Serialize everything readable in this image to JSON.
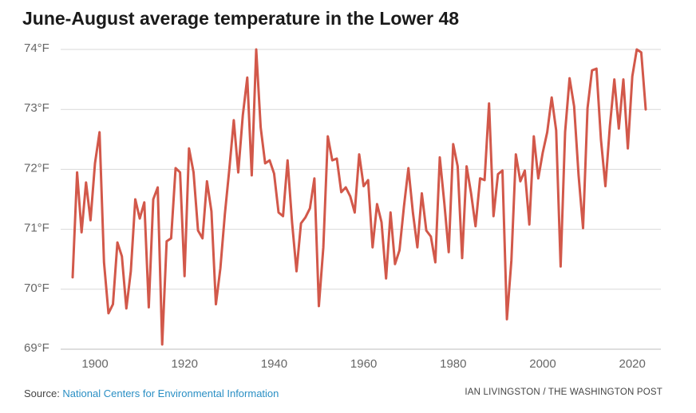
{
  "title": "June-August average temperature in the Lower 48",
  "source": {
    "prefix": "Source: ",
    "link_text": "National Centers for Environmental Information"
  },
  "credit": "IAN LIVINGSTON / THE WASHINGTON POST",
  "colors": {
    "line": "#d2584a",
    "grid": "#d9d9d9",
    "tick_text": "#666666",
    "link": "#2a8fc4"
  },
  "chart_data": {
    "type": "line",
    "title": "June-August average temperature in the Lower 48",
    "xlabel": "",
    "ylabel": "",
    "xlim": [
      1895,
      2023
    ],
    "ylim": [
      69,
      74
    ],
    "grid": true,
    "x_ticks": [
      1900,
      1920,
      1940,
      1960,
      1980,
      2000,
      2020
    ],
    "y_ticks": [
      {
        "value": 69,
        "label": "69°F"
      },
      {
        "value": 70,
        "label": "70°F"
      },
      {
        "value": 71,
        "label": "71°F"
      },
      {
        "value": 72,
        "label": "72°F"
      },
      {
        "value": 73,
        "label": "73°F"
      },
      {
        "value": 74,
        "label": "74°F"
      }
    ],
    "series": [
      {
        "x": [
          1895,
          1896,
          1897,
          1898,
          1899,
          1900,
          1901,
          1902,
          1903,
          1904,
          1905,
          1906,
          1907,
          1908,
          1909,
          1910,
          1911,
          1912,
          1913,
          1914,
          1915,
          1916,
          1917,
          1918,
          1919,
          1920,
          1921,
          1922,
          1923,
          1924,
          1925,
          1926,
          1927,
          1928,
          1929,
          1930,
          1931,
          1932,
          1933,
          1934,
          1935,
          1936,
          1937,
          1938,
          1939,
          1940,
          1941,
          1942,
          1943,
          1944,
          1945,
          1946,
          1947,
          1948,
          1949,
          1950,
          1951,
          1952,
          1953,
          1954,
          1955,
          1956,
          1957,
          1958,
          1959,
          1960,
          1961,
          1962,
          1963,
          1964,
          1965,
          1966,
          1967,
          1968,
          1969,
          1970,
          1971,
          1972,
          1973,
          1974,
          1975,
          1976,
          1977,
          1978,
          1979,
          1980,
          1981,
          1982,
          1983,
          1984,
          1985,
          1986,
          1987,
          1988,
          1989,
          1990,
          1991,
          1992,
          1993,
          1994,
          1995,
          1996,
          1997,
          1998,
          1999,
          2000,
          2001,
          2002,
          2003,
          2004,
          2005,
          2006,
          2007,
          2008,
          2009,
          2010,
          2011,
          2012,
          2013,
          2014,
          2015,
          2016,
          2017,
          2018,
          2019,
          2020,
          2021,
          2022,
          2023
        ],
        "values": [
          70.2,
          71.95,
          70.95,
          71.78,
          71.15,
          72.1,
          72.62,
          70.45,
          69.6,
          69.75,
          70.78,
          70.55,
          69.68,
          70.3,
          71.5,
          71.18,
          71.45,
          69.7,
          71.5,
          71.7,
          69.08,
          70.8,
          70.85,
          72.02,
          71.95,
          70.22,
          72.35,
          71.95,
          70.98,
          70.85,
          71.8,
          71.3,
          69.75,
          70.35,
          71.25,
          72.0,
          72.82,
          71.95,
          72.9,
          73.53,
          71.9,
          74.0,
          72.7,
          72.1,
          72.15,
          71.93,
          71.28,
          71.22,
          72.15,
          71.12,
          70.3,
          71.1,
          71.2,
          71.35,
          71.85,
          69.72,
          70.7,
          72.55,
          72.15,
          72.18,
          71.62,
          71.7,
          71.55,
          71.28,
          72.25,
          71.72,
          71.82,
          70.7,
          71.42,
          71.12,
          70.18,
          71.28,
          70.42,
          70.65,
          71.38,
          72.02,
          71.28,
          70.7,
          71.6,
          70.98,
          70.88,
          70.45,
          72.2,
          71.45,
          70.62,
          72.42,
          72.05,
          70.52,
          72.05,
          71.6,
          71.05,
          71.85,
          71.82,
          73.1,
          71.22,
          71.92,
          71.98,
          69.5,
          70.48,
          72.25,
          71.8,
          71.98,
          71.08,
          72.55,
          71.85,
          72.28,
          72.62,
          73.2,
          72.65,
          70.38,
          72.62,
          73.52,
          73.05,
          71.9,
          71.02,
          73.02,
          73.65,
          73.68,
          72.5,
          71.72,
          72.72,
          73.5,
          72.68,
          73.5,
          72.35,
          73.55,
          74.0,
          73.95,
          73.0
        ]
      }
    ]
  }
}
